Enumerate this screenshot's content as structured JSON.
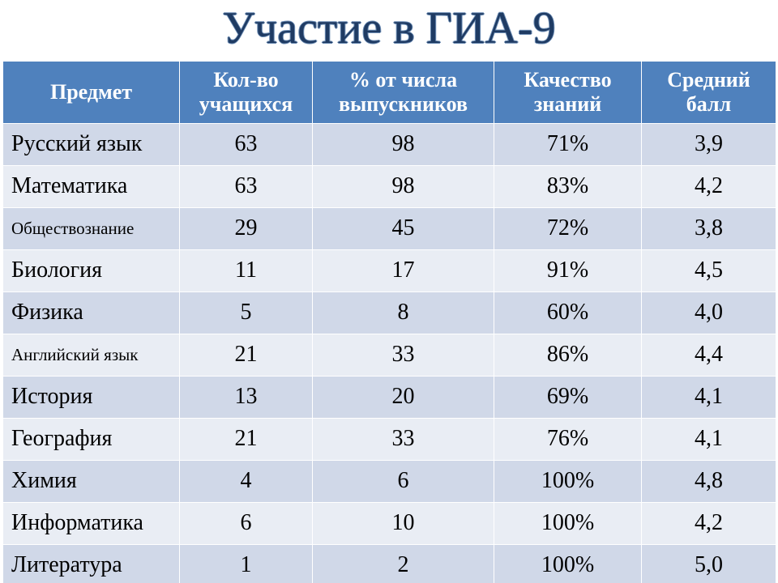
{
  "title": "Участие в ГИА-9",
  "columns": [
    "Предмет",
    "Кол-во учащихся",
    "% от числа выпускников",
    "Качество знаний",
    "Средний балл"
  ],
  "colors": {
    "header_bg": "#4f81bd",
    "header_text": "#ffffff",
    "band_a": "#d0d8e8",
    "band_b": "#e9edf4",
    "title_color": "#1f3b63",
    "title_outline": "#6d8db4",
    "cell_border": "#ffffff",
    "text": "#000000"
  },
  "fontsize": {
    "title": 56,
    "header": 26,
    "cell": 28,
    "small_subject": 21
  },
  "rows": [
    {
      "subject": "Русский язык",
      "count": "63",
      "pct": "98",
      "quality": "71%",
      "avg": "3,9",
      "small": false
    },
    {
      "subject": "Математика",
      "count": "63",
      "pct": "98",
      "quality": "83%",
      "avg": "4,2",
      "small": false
    },
    {
      "subject": "Обществознание",
      "count": "29",
      "pct": "45",
      "quality": "72%",
      "avg": "3,8",
      "small": true
    },
    {
      "subject": "Биология",
      "count": "11",
      "pct": "17",
      "quality": "91%",
      "avg": "4,5",
      "small": false
    },
    {
      "subject": "Физика",
      "count": "5",
      "pct": "8",
      "quality": "60%",
      "avg": "4,0",
      "small": false
    },
    {
      "subject": "Английский язык",
      "count": "21",
      "pct": "33",
      "quality": "86%",
      "avg": "4,4",
      "small": true
    },
    {
      "subject": "История",
      "count": "13",
      "pct": "20",
      "quality": "69%",
      "avg": "4,1",
      "small": false
    },
    {
      "subject": "География",
      "count": "21",
      "pct": "33",
      "quality": "76%",
      "avg": "4,1",
      "small": false
    },
    {
      "subject": "Химия",
      "count": "4",
      "pct": "6",
      "quality": "100%",
      "avg": "4,8",
      "small": false
    },
    {
      "subject": "Информатика",
      "count": "6",
      "pct": "10",
      "quality": "100%",
      "avg": "4,2",
      "small": false
    },
    {
      "subject": "Литература",
      "count": "1",
      "pct": "2",
      "quality": "100%",
      "avg": "5,0",
      "small": false
    }
  ]
}
